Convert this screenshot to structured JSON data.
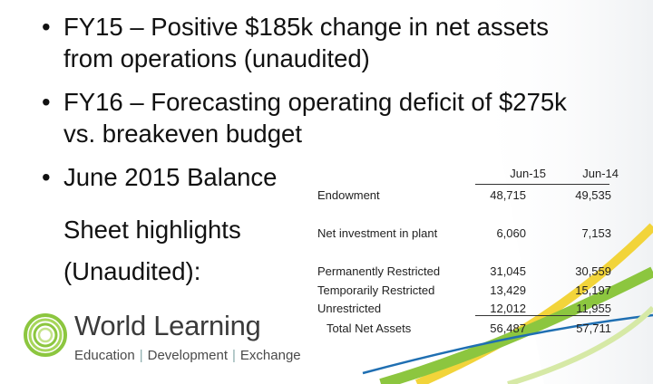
{
  "bullets": [
    {
      "line1": "FY15 – Positive $185k change in net assets",
      "line2": "from operations (unaudited)"
    },
    {
      "line1": "FY16 – Forecasting operating deficit of $275k",
      "line2": "vs. breakeven budget"
    },
    {
      "line1": "June 2015 Balance",
      "line2": "Sheet highlights",
      "line3": "(Unaudited):"
    }
  ],
  "balance_sheet": {
    "col1": "Jun-15",
    "col2": "Jun-14",
    "rows": [
      {
        "label": "Endowment",
        "jun15": "48,715",
        "jun14": "49,535"
      },
      {
        "label": "Net investment in plant",
        "jun15": "6,060",
        "jun14": "7,153"
      },
      {
        "label": "Permanently Restricted",
        "jun15": "31,045",
        "jun14": "30,559"
      },
      {
        "label": "Temporarily Restricted",
        "jun15": "13,429",
        "jun14": "15,197"
      },
      {
        "label": "Unrestricted",
        "jun15": "12,012",
        "jun14": "11,955"
      },
      {
        "label": "Total Net Assets",
        "jun15": "56,487",
        "jun14": "57,711"
      }
    ]
  },
  "logo": {
    "name": "World Learning",
    "tagline": [
      "Education",
      "Development",
      "Exchange"
    ],
    "separator": "|"
  },
  "colors": {
    "green": "#8cc63f",
    "blue": "#1f6fb2",
    "yellow": "#f2d43a"
  }
}
